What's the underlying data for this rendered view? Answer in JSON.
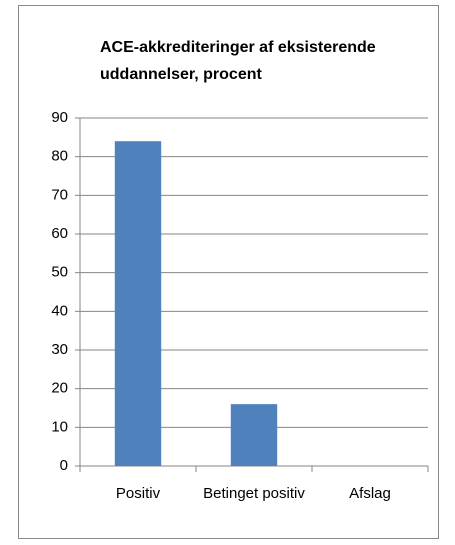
{
  "chart_data": {
    "type": "bar",
    "title": "ACE-akkrediteringer af eksisterende uddannelser, procent",
    "categories": [
      "Positiv",
      "Betinget positiv",
      "Afslag"
    ],
    "values": [
      84,
      16,
      0
    ],
    "color": "#4f81bd",
    "ylim": [
      0,
      90
    ],
    "yticks": [
      0,
      10,
      20,
      30,
      40,
      50,
      60,
      70,
      80,
      90
    ],
    "grid": true
  }
}
